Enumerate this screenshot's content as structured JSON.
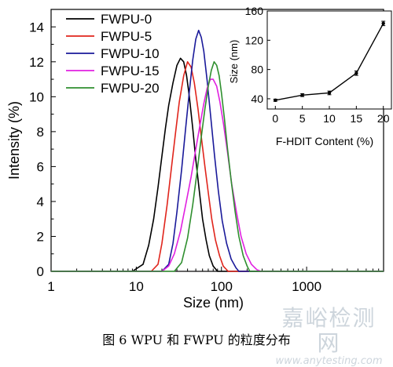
{
  "chart_data": {
    "main": {
      "type": "line",
      "xscale": "log",
      "xlabel": "Size (nm)",
      "ylabel": "Intensity (%)",
      "xlim": [
        1,
        8000
      ],
      "ylim": [
        0,
        15
      ],
      "xticks": [
        1,
        10,
        100,
        1000
      ],
      "xtick_labels": [
        "1",
        "10",
        "100",
        "1000"
      ],
      "yticks": [
        0,
        2,
        4,
        6,
        8,
        10,
        12,
        14
      ],
      "ytick_labels": [
        "0",
        "2",
        "4",
        "6",
        "8",
        "10",
        "12",
        "14"
      ],
      "legend_position": "top-left",
      "series": [
        {
          "name": "FWPU-0",
          "color": "#000000",
          "x": [
            1,
            9,
            12,
            14,
            16,
            18,
            20,
            22,
            24,
            27,
            30,
            33,
            36,
            39,
            42,
            46,
            50,
            55,
            60,
            66,
            72,
            80,
            90,
            8000
          ],
          "y": [
            0,
            0,
            0.4,
            1.5,
            3.0,
            4.8,
            6.6,
            8.2,
            9.5,
            10.8,
            11.8,
            12.2,
            12.0,
            11.2,
            10.0,
            8.2,
            6.4,
            4.6,
            3.0,
            1.8,
            0.9,
            0.3,
            0,
            0
          ]
        },
        {
          "name": "FWPU-5",
          "color": "#e0251c",
          "x": [
            1,
            15,
            18,
            20,
            23,
            26,
            29,
            32,
            36,
            40,
            44,
            48,
            53,
            58,
            64,
            70,
            77,
            85,
            95,
            105,
            120,
            8000
          ],
          "y": [
            0,
            0,
            0.4,
            1.6,
            3.8,
            6.0,
            8.0,
            9.7,
            11.2,
            12.0,
            11.7,
            10.8,
            9.3,
            7.7,
            6.0,
            4.5,
            3.0,
            1.8,
            0.9,
            0.3,
            0,
            0
          ]
        },
        {
          "name": "FWPU-10",
          "color": "#1a1a9a",
          "x": [
            1,
            20,
            24,
            27,
            30,
            34,
            38,
            42,
            46,
            50,
            54,
            58,
            62,
            68,
            75,
            83,
            92,
            102,
            115,
            130,
            148,
            160,
            8000
          ],
          "y": [
            0,
            0,
            0.4,
            1.6,
            3.4,
            5.8,
            8.2,
            10.3,
            12.1,
            13.3,
            13.8,
            13.4,
            12.6,
            10.9,
            8.8,
            6.6,
            4.6,
            2.9,
            1.6,
            0.7,
            0.2,
            0,
            0
          ]
        },
        {
          "name": "FWPU-15",
          "color": "#e020e0",
          "x": [
            1,
            20,
            24,
            28,
            33,
            38,
            44,
            50,
            56,
            62,
            68,
            74,
            80,
            88,
            96,
            106,
            118,
            132,
            150,
            170,
            195,
            225,
            260,
            290,
            8000
          ],
          "y": [
            0,
            0,
            0.3,
            1.0,
            2.3,
            3.8,
            5.4,
            7.0,
            8.4,
            9.6,
            10.5,
            11.0,
            11.0,
            10.6,
            9.7,
            8.4,
            6.8,
            5.0,
            3.4,
            2.0,
            1.0,
            0.4,
            0.1,
            0,
            0
          ]
        },
        {
          "name": "FWPU-20",
          "color": "#2f8f2f",
          "x": [
            1,
            28,
            34,
            40,
            46,
            52,
            58,
            64,
            70,
            76,
            82,
            88,
            94,
            100,
            108,
            118,
            130,
            145,
            160,
            180,
            200,
            215,
            8000
          ],
          "y": [
            0,
            0,
            0.5,
            1.9,
            3.8,
            5.8,
            7.7,
            9.3,
            10.6,
            11.5,
            12.0,
            11.8,
            11.2,
            10.2,
            8.8,
            7.0,
            5.2,
            3.4,
            2.0,
            0.9,
            0.3,
            0,
            0
          ]
        }
      ]
    },
    "inset": {
      "type": "line",
      "xlabel": "F-HDIT Content (%)",
      "ylabel": "Size (nm)",
      "xlim": [
        -1.5,
        21.5
      ],
      "ylim": [
        26,
        160
      ],
      "xticks": [
        0,
        5,
        10,
        15,
        20
      ],
      "xtick_labels": [
        "0",
        "5",
        "10",
        "15",
        "20"
      ],
      "yticks": [
        40,
        80,
        120,
        160
      ],
      "ytick_labels": [
        "40",
        "80",
        "120",
        "160"
      ],
      "series": [
        {
          "x": [
            0,
            5,
            10,
            15,
            20
          ],
          "y": [
            38,
            45,
            48,
            75,
            143
          ],
          "error": [
            1.5,
            2,
            2.5,
            3,
            3
          ],
          "color": "#000000"
        }
      ]
    }
  },
  "caption": "图 6    WPU 和 FWPU 的粒度分布",
  "watermark": {
    "cn": "嘉峪检测网",
    "en": "www.anytesting.com"
  }
}
